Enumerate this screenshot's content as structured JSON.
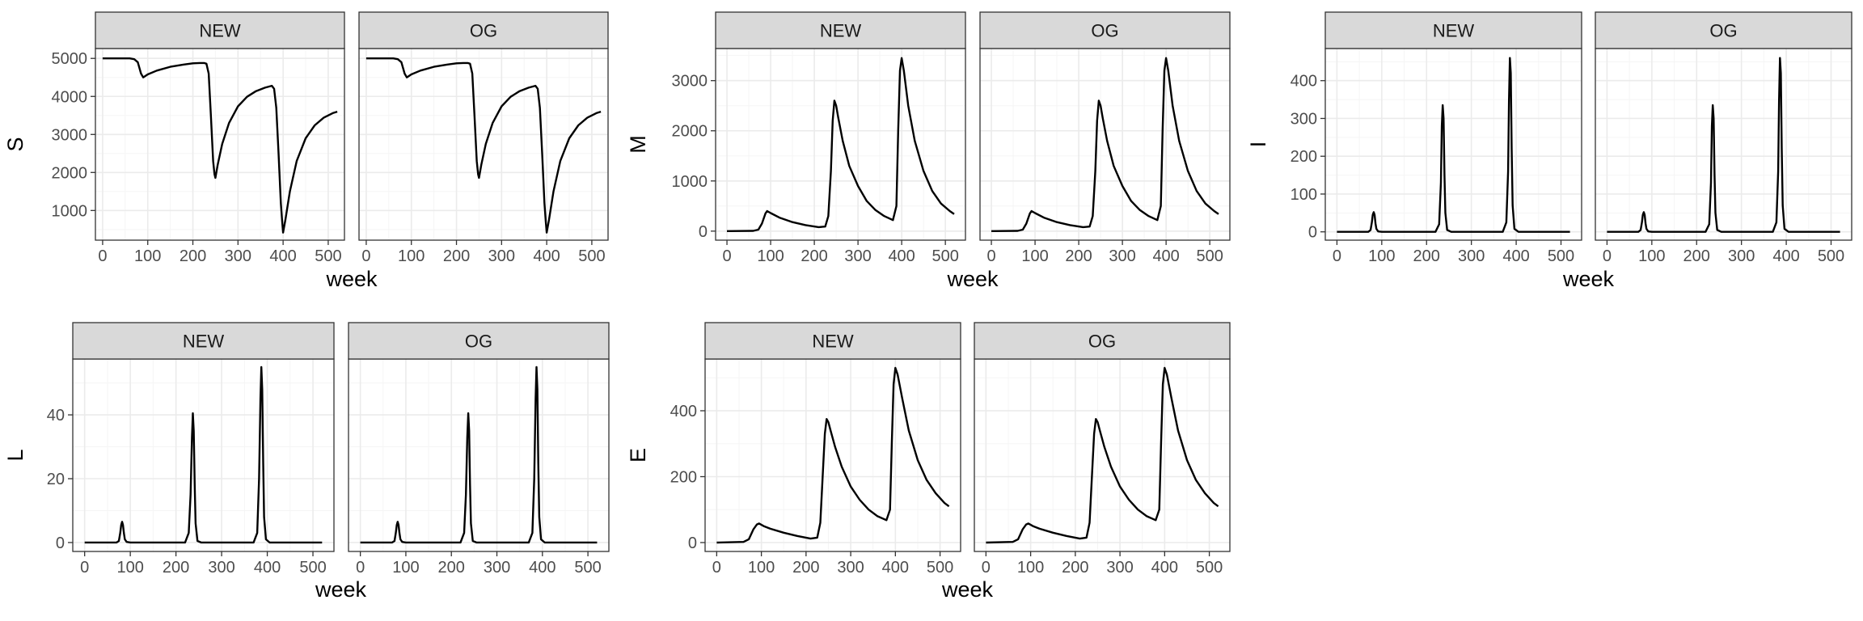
{
  "theme": {
    "strip_fill": "#d9d9d9",
    "strip_border": "#333333",
    "panel_border": "#333333",
    "grid_major": "#ebebeb",
    "grid_minor": "#f5f5f5",
    "line_color": "#000000",
    "tick_text": "#4d4d4d"
  },
  "facet_labels": [
    "NEW",
    "OG"
  ],
  "chart_data": [
    {
      "type": "line",
      "variable": "S",
      "xlabel": "week",
      "ylabel": "S",
      "xlim": [
        -16,
        536
      ],
      "ylim": [
        220,
        5260
      ],
      "xticks": [
        0,
        100,
        200,
        300,
        400,
        500
      ],
      "yticks": [
        1000,
        2000,
        3000,
        4000,
        5000
      ],
      "ytick_labels": [
        "1000",
        "2000",
        "3000",
        "4000",
        "5000"
      ],
      "series": [
        {
          "facet": "NEW",
          "x": [
            0,
            60,
            70,
            78,
            85,
            90,
            100,
            120,
            150,
            180,
            200,
            215,
            225,
            230,
            235,
            240,
            245,
            248,
            250,
            255,
            265,
            280,
            300,
            320,
            340,
            360,
            375,
            380,
            385,
            390,
            395,
            398,
            400,
            405,
            415,
            430,
            450,
            470,
            490,
            510,
            520
          ],
          "y": [
            5000,
            5000,
            4980,
            4900,
            4600,
            4500,
            4580,
            4680,
            4780,
            4840,
            4870,
            4880,
            4880,
            4860,
            4600,
            3500,
            2300,
            1950,
            1860,
            2200,
            2750,
            3300,
            3740,
            3990,
            4140,
            4230,
            4280,
            4200,
            3700,
            2500,
            1200,
            700,
            420,
            750,
            1500,
            2300,
            2900,
            3240,
            3440,
            3560,
            3600
          ]
        },
        {
          "facet": "OG",
          "x": [
            0,
            60,
            70,
            78,
            85,
            90,
            100,
            120,
            150,
            180,
            200,
            215,
            225,
            230,
            235,
            240,
            245,
            248,
            250,
            255,
            265,
            280,
            300,
            320,
            340,
            360,
            375,
            380,
            385,
            390,
            395,
            398,
            400,
            405,
            415,
            430,
            450,
            470,
            490,
            510,
            520
          ],
          "y": [
            5000,
            5000,
            4980,
            4900,
            4600,
            4500,
            4580,
            4680,
            4780,
            4840,
            4870,
            4880,
            4880,
            4860,
            4600,
            3500,
            2300,
            1950,
            1860,
            2200,
            2750,
            3300,
            3740,
            3990,
            4140,
            4230,
            4280,
            4200,
            3700,
            2500,
            1200,
            700,
            420,
            750,
            1500,
            2300,
            2900,
            3240,
            3440,
            3560,
            3600
          ]
        }
      ]
    },
    {
      "type": "line",
      "variable": "M",
      "xlabel": "week",
      "ylabel": "M",
      "xlim": [
        -26,
        546
      ],
      "ylim": [
        -180,
        3640
      ],
      "xticks": [
        0,
        100,
        200,
        300,
        400,
        500
      ],
      "yticks": [
        0,
        1000,
        2000,
        3000
      ],
      "ytick_labels": [
        "0",
        "1000",
        "2000",
        "3000"
      ],
      "series": [
        {
          "facet": "NEW",
          "x": [
            0,
            60,
            72,
            80,
            88,
            92,
            100,
            120,
            150,
            180,
            210,
            225,
            232,
            238,
            242,
            246,
            250,
            255,
            265,
            280,
            300,
            320,
            340,
            360,
            380,
            388,
            392,
            396,
            400,
            405,
            415,
            430,
            450,
            470,
            490,
            510,
            520
          ],
          "y": [
            0,
            5,
            30,
            150,
            350,
            400,
            360,
            270,
            180,
            120,
            80,
            90,
            300,
            1200,
            2200,
            2600,
            2500,
            2250,
            1800,
            1300,
            900,
            600,
            420,
            300,
            220,
            500,
            2000,
            3200,
            3450,
            3200,
            2500,
            1800,
            1200,
            800,
            550,
            400,
            340
          ]
        },
        {
          "facet": "OG",
          "x": [
            0,
            60,
            72,
            80,
            88,
            92,
            100,
            120,
            150,
            180,
            210,
            225,
            232,
            238,
            242,
            246,
            250,
            255,
            265,
            280,
            300,
            320,
            340,
            360,
            380,
            388,
            392,
            396,
            400,
            405,
            415,
            430,
            450,
            470,
            490,
            510,
            520
          ],
          "y": [
            0,
            5,
            30,
            150,
            350,
            400,
            360,
            270,
            180,
            120,
            80,
            90,
            300,
            1200,
            2200,
            2600,
            2500,
            2250,
            1800,
            1300,
            900,
            600,
            420,
            300,
            220,
            500,
            2000,
            3200,
            3450,
            3200,
            2500,
            1800,
            1200,
            800,
            550,
            400,
            340
          ]
        }
      ]
    },
    {
      "type": "line",
      "variable": "I",
      "xlabel": "week",
      "ylabel": "I",
      "xlim": [
        -26,
        546
      ],
      "ylim": [
        -22,
        485
      ],
      "xticks": [
        0,
        100,
        200,
        300,
        400,
        500
      ],
      "yticks": [
        0,
        100,
        200,
        300,
        400
      ],
      "ytick_labels": [
        "0",
        "100",
        "200",
        "300",
        "400"
      ],
      "series": [
        {
          "facet": "NEW",
          "x": [
            0,
            70,
            75,
            78,
            80,
            82,
            84,
            86,
            88,
            92,
            100,
            220,
            228,
            232,
            234,
            236,
            238,
            240,
            242,
            246,
            255,
            370,
            378,
            382,
            384,
            386,
            388,
            390,
            392,
            396,
            405,
            520
          ],
          "y": [
            0,
            0,
            5,
            25,
            45,
            52,
            45,
            22,
            8,
            1,
            0,
            0,
            20,
            130,
            280,
            335,
            300,
            150,
            50,
            5,
            0,
            0,
            25,
            160,
            350,
            460,
            420,
            220,
            70,
            8,
            0,
            0
          ]
        },
        {
          "facet": "OG",
          "x": [
            0,
            70,
            75,
            78,
            80,
            82,
            84,
            86,
            88,
            92,
            100,
            220,
            228,
            232,
            234,
            236,
            238,
            240,
            242,
            246,
            255,
            370,
            378,
            382,
            384,
            386,
            388,
            390,
            392,
            396,
            405,
            520
          ],
          "y": [
            0,
            0,
            5,
            25,
            45,
            52,
            45,
            22,
            8,
            1,
            0,
            0,
            20,
            130,
            280,
            335,
            300,
            150,
            50,
            5,
            0,
            0,
            25,
            160,
            350,
            460,
            420,
            220,
            70,
            8,
            0,
            0
          ]
        }
      ]
    },
    {
      "type": "line",
      "variable": "L",
      "xlabel": "week",
      "ylabel": "L",
      "xlim": [
        -26,
        546
      ],
      "ylim": [
        -2.8,
        57.5
      ],
      "xticks": [
        0,
        100,
        200,
        300,
        400,
        500
      ],
      "yticks": [
        0,
        20,
        40
      ],
      "ytick_labels": [
        "0",
        "20",
        "40"
      ],
      "series": [
        {
          "facet": "NEW",
          "x": [
            0,
            70,
            75,
            78,
            80,
            82,
            84,
            86,
            88,
            92,
            100,
            220,
            228,
            232,
            235,
            237,
            239,
            241,
            243,
            247,
            255,
            370,
            378,
            382,
            385,
            387,
            389,
            391,
            393,
            397,
            405,
            520
          ],
          "y": [
            0,
            0,
            0.5,
            3,
            5.5,
            6.5,
            5.5,
            3,
            1,
            0.2,
            0,
            0,
            3,
            15,
            33,
            40.5,
            35,
            18,
            6,
            0.5,
            0,
            0,
            3,
            20,
            45,
            55,
            48,
            25,
            8,
            1,
            0,
            0
          ]
        },
        {
          "facet": "OG",
          "x": [
            0,
            70,
            75,
            78,
            80,
            82,
            84,
            86,
            88,
            92,
            100,
            220,
            228,
            232,
            235,
            237,
            239,
            241,
            243,
            247,
            255,
            370,
            378,
            382,
            385,
            387,
            389,
            391,
            393,
            397,
            405,
            520
          ],
          "y": [
            0,
            0,
            0.5,
            3,
            5.5,
            6.5,
            5.5,
            3,
            1,
            0.2,
            0,
            0,
            3,
            15,
            33,
            40.5,
            35,
            18,
            6,
            0.5,
            0,
            0,
            3,
            20,
            45,
            55,
            48,
            25,
            8,
            1,
            0,
            0
          ]
        }
      ]
    },
    {
      "type": "line",
      "variable": "E",
      "xlabel": "week",
      "ylabel": "E",
      "xlim": [
        -26,
        546
      ],
      "ylim": [
        -27,
        557
      ],
      "xticks": [
        0,
        100,
        200,
        300,
        400,
        500
      ],
      "yticks": [
        0,
        200,
        400
      ],
      "ytick_labels": [
        "0",
        "200",
        "400"
      ],
      "series": [
        {
          "facet": "NEW",
          "x": [
            0,
            60,
            72,
            82,
            90,
            95,
            105,
            120,
            150,
            180,
            210,
            225,
            232,
            238,
            242,
            246,
            250,
            255,
            265,
            280,
            300,
            320,
            340,
            360,
            380,
            388,
            392,
            396,
            400,
            405,
            415,
            430,
            450,
            470,
            490,
            510,
            520
          ],
          "y": [
            0,
            2,
            10,
            40,
            55,
            58,
            50,
            42,
            30,
            20,
            12,
            15,
            60,
            220,
            330,
            375,
            365,
            340,
            290,
            230,
            170,
            130,
            100,
            80,
            68,
            100,
            300,
            480,
            530,
            510,
            440,
            340,
            250,
            190,
            150,
            120,
            110
          ]
        },
        {
          "facet": "OG",
          "x": [
            0,
            60,
            72,
            82,
            90,
            95,
            105,
            120,
            150,
            180,
            210,
            225,
            232,
            238,
            242,
            246,
            250,
            255,
            265,
            280,
            300,
            320,
            340,
            360,
            380,
            388,
            392,
            396,
            400,
            405,
            415,
            430,
            450,
            470,
            490,
            510,
            520
          ],
          "y": [
            0,
            2,
            10,
            40,
            55,
            58,
            50,
            42,
            30,
            20,
            12,
            15,
            60,
            220,
            330,
            375,
            365,
            340,
            290,
            230,
            170,
            130,
            100,
            80,
            68,
            100,
            300,
            480,
            530,
            510,
            440,
            340,
            250,
            190,
            150,
            120,
            110
          ]
        }
      ]
    }
  ]
}
